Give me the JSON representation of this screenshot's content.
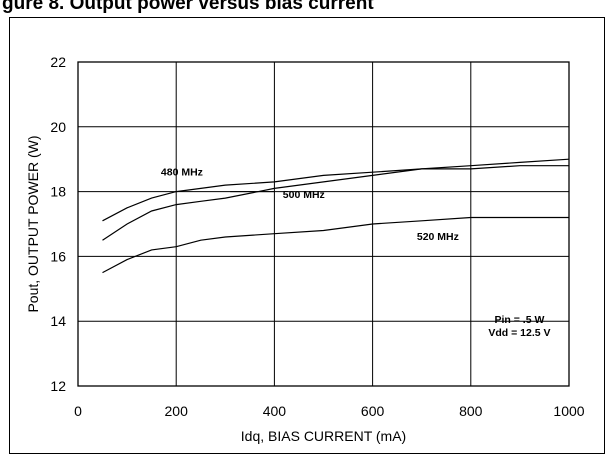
{
  "page": {
    "title_fragment": "gure 8. Output power versus bias current"
  },
  "chart_data": {
    "type": "line",
    "xlabel": "Idq, BIAS CURRENT  (mA)",
    "ylabel": "Pout, OUTPUT POWER  (W)",
    "xlim": [
      0,
      1000
    ],
    "ylim": [
      12,
      22
    ],
    "xticks": [
      0,
      200,
      400,
      600,
      800,
      1000
    ],
    "yticks": [
      12,
      14,
      16,
      18,
      20,
      22
    ],
    "grid": true,
    "series": [
      {
        "name": "480 MHz",
        "x": [
          50,
          100,
          150,
          200,
          250,
          300,
          400,
          500,
          600,
          700,
          800,
          900,
          1000
        ],
        "y": [
          17.1,
          17.5,
          17.8,
          18.0,
          18.1,
          18.2,
          18.3,
          18.5,
          18.6,
          18.7,
          18.8,
          18.9,
          19.0
        ]
      },
      {
        "name": "500 MHz",
        "x": [
          50,
          100,
          150,
          200,
          250,
          300,
          400,
          500,
          600,
          700,
          800,
          900,
          1000
        ],
        "y": [
          16.5,
          17.0,
          17.4,
          17.6,
          17.7,
          17.8,
          18.1,
          18.3,
          18.5,
          18.7,
          18.7,
          18.8,
          18.8
        ]
      },
      {
        "name": "520 MHz",
        "x": [
          50,
          100,
          150,
          200,
          250,
          300,
          400,
          500,
          600,
          700,
          800,
          900,
          1000
        ],
        "y": [
          15.5,
          15.9,
          16.2,
          16.3,
          16.5,
          16.6,
          16.7,
          16.8,
          17.0,
          17.1,
          17.2,
          17.2,
          17.2
        ]
      }
    ],
    "annotations": [
      "Pin = .5 W",
      "Vdd = 12.5 V"
    ]
  }
}
